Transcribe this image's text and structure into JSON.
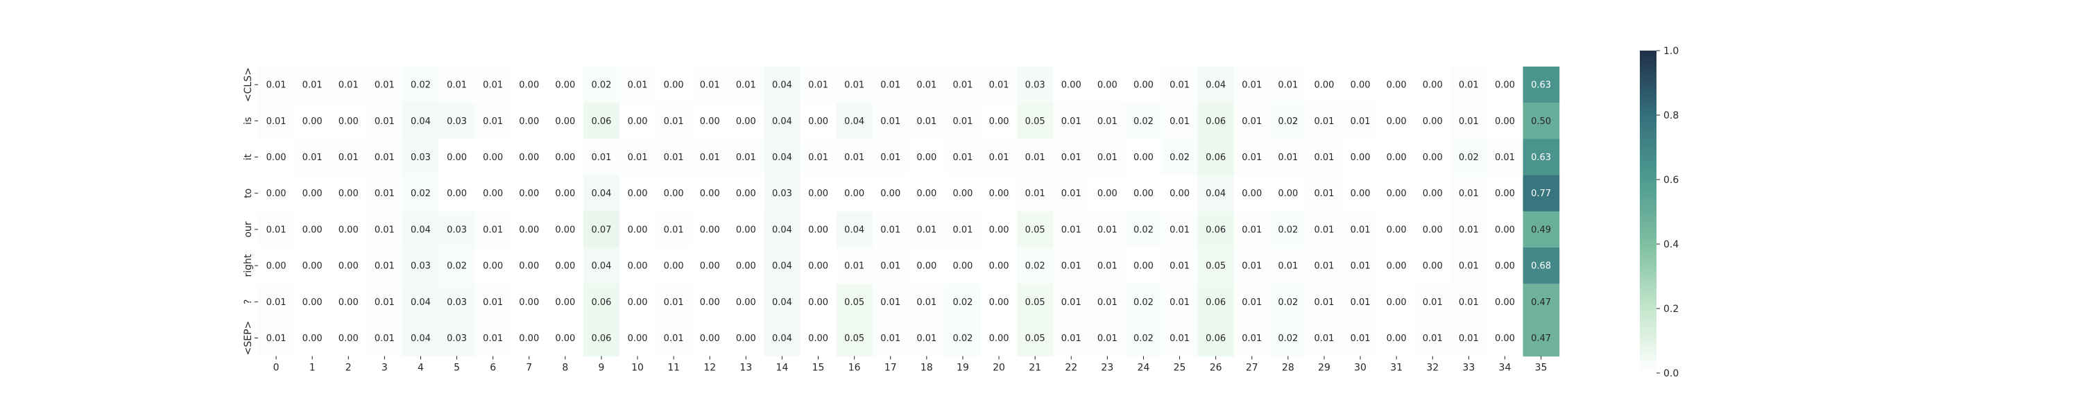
{
  "chart_data": {
    "type": "heatmap",
    "title": "",
    "xlabel": "",
    "ylabel": "",
    "x": [
      "0",
      "1",
      "2",
      "3",
      "4",
      "5",
      "6",
      "7",
      "8",
      "9",
      "10",
      "11",
      "12",
      "13",
      "14",
      "15",
      "16",
      "17",
      "18",
      "19",
      "20",
      "21",
      "22",
      "23",
      "24",
      "25",
      "26",
      "27",
      "28",
      "29",
      "30",
      "31",
      "32",
      "33",
      "34",
      "35"
    ],
    "y": [
      "<CLS>",
      "is",
      "it",
      "to",
      "our",
      "right",
      "?",
      "<SEP>"
    ],
    "values": [
      [
        0.01,
        0.01,
        0.01,
        0.01,
        0.02,
        0.01,
        0.01,
        0.0,
        0.0,
        0.02,
        0.01,
        0.0,
        0.01,
        0.01,
        0.04,
        0.01,
        0.01,
        0.01,
        0.01,
        0.01,
        0.01,
        0.03,
        0.0,
        0.0,
        0.0,
        0.01,
        0.04,
        0.01,
        0.01,
        0.0,
        0.0,
        0.0,
        0.0,
        0.01,
        0.0,
        0.63
      ],
      [
        0.01,
        0.0,
        0.0,
        0.01,
        0.04,
        0.03,
        0.01,
        0.0,
        0.0,
        0.06,
        0.0,
        0.01,
        0.0,
        0.0,
        0.04,
        0.0,
        0.04,
        0.01,
        0.01,
        0.01,
        0.0,
        0.05,
        0.01,
        0.01,
        0.02,
        0.01,
        0.06,
        0.01,
        0.02,
        0.01,
        0.01,
        0.0,
        0.0,
        0.01,
        0.0,
        0.5
      ],
      [
        0.0,
        0.01,
        0.01,
        0.01,
        0.03,
        0.0,
        0.0,
        0.0,
        0.0,
        0.01,
        0.01,
        0.01,
        0.01,
        0.01,
        0.04,
        0.01,
        0.01,
        0.01,
        0.0,
        0.01,
        0.01,
        0.01,
        0.01,
        0.01,
        0.0,
        0.02,
        0.06,
        0.01,
        0.01,
        0.01,
        0.0,
        0.0,
        0.0,
        0.02,
        0.01,
        0.63
      ],
      [
        0.0,
        0.0,
        0.0,
        0.01,
        0.02,
        0.0,
        0.0,
        0.0,
        0.0,
        0.04,
        0.0,
        0.0,
        0.0,
        0.0,
        0.03,
        0.0,
        0.0,
        0.0,
        0.0,
        0.0,
        0.0,
        0.01,
        0.01,
        0.0,
        0.0,
        0.0,
        0.04,
        0.0,
        0.0,
        0.01,
        0.0,
        0.0,
        0.0,
        0.01,
        0.0,
        0.77
      ],
      [
        0.01,
        0.0,
        0.0,
        0.01,
        0.04,
        0.03,
        0.01,
        0.0,
        0.0,
        0.07,
        0.0,
        0.01,
        0.0,
        0.0,
        0.04,
        0.0,
        0.04,
        0.01,
        0.01,
        0.01,
        0.0,
        0.05,
        0.01,
        0.01,
        0.02,
        0.01,
        0.06,
        0.01,
        0.02,
        0.01,
        0.01,
        0.0,
        0.0,
        0.01,
        0.0,
        0.49
      ],
      [
        0.0,
        0.0,
        0.0,
        0.01,
        0.03,
        0.02,
        0.0,
        0.0,
        0.0,
        0.04,
        0.0,
        0.0,
        0.0,
        0.0,
        0.04,
        0.0,
        0.01,
        0.01,
        0.0,
        0.0,
        0.0,
        0.02,
        0.01,
        0.01,
        0.0,
        0.01,
        0.05,
        0.01,
        0.01,
        0.01,
        0.01,
        0.0,
        0.0,
        0.01,
        0.0,
        0.68
      ],
      [
        0.01,
        0.0,
        0.0,
        0.01,
        0.04,
        0.03,
        0.01,
        0.0,
        0.0,
        0.06,
        0.0,
        0.01,
        0.0,
        0.0,
        0.04,
        0.0,
        0.05,
        0.01,
        0.01,
        0.02,
        0.0,
        0.05,
        0.01,
        0.01,
        0.02,
        0.01,
        0.06,
        0.01,
        0.02,
        0.01,
        0.01,
        0.0,
        0.01,
        0.01,
        0.0,
        0.47
      ],
      [
        0.01,
        0.0,
        0.0,
        0.01,
        0.04,
        0.03,
        0.01,
        0.0,
        0.0,
        0.06,
        0.0,
        0.01,
        0.0,
        0.0,
        0.04,
        0.0,
        0.05,
        0.01,
        0.01,
        0.02,
        0.0,
        0.05,
        0.01,
        0.01,
        0.02,
        0.01,
        0.06,
        0.01,
        0.02,
        0.01,
        0.01,
        0.0,
        0.01,
        0.01,
        0.0,
        0.47
      ]
    ],
    "value_format": "0.00",
    "colorbar": {
      "range": [
        0.0,
        1.0
      ],
      "ticks": [
        "0.0",
        "0.2",
        "0.4",
        "0.6",
        "0.8",
        "1.0"
      ],
      "colormap": [
        "#ffffff",
        "#c4e6cc",
        "#7fbfa2",
        "#4f9b90",
        "#346f7c",
        "#203048"
      ]
    },
    "grid": false,
    "legend": "colorbar-right"
  }
}
